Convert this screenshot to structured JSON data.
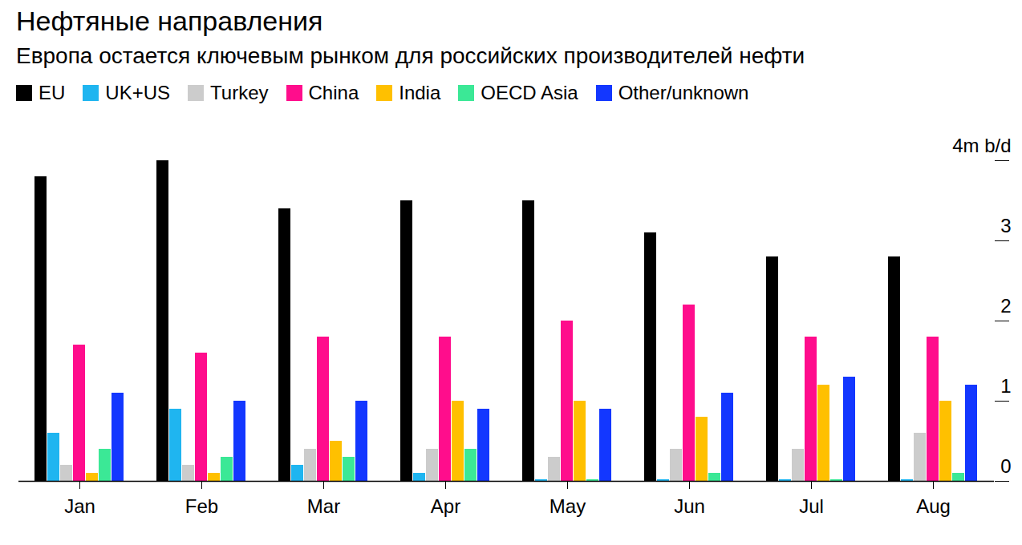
{
  "chart_data": {
    "type": "bar",
    "title": "Нефтяные направления",
    "subtitle": "Европа остается ключевым рынком для российских производителей нефти",
    "categories": [
      "Jan",
      "Feb",
      "Mar",
      "Apr",
      "May",
      "Jun",
      "Jul",
      "Aug"
    ],
    "series": [
      {
        "name": "EU",
        "color": "#000000",
        "values": [
          3.8,
          4.0,
          3.4,
          3.5,
          3.5,
          3.1,
          2.8,
          2.8
        ]
      },
      {
        "name": "UK+US",
        "color": "#1fb5f0",
        "values": [
          0.6,
          0.9,
          0.2,
          0.1,
          0.02,
          0.02,
          0.02,
          0.02
        ]
      },
      {
        "name": "Turkey",
        "color": "#cccccc",
        "values": [
          0.2,
          0.2,
          0.4,
          0.4,
          0.3,
          0.4,
          0.4,
          0.6
        ]
      },
      {
        "name": "China",
        "color": "#ff0d8c",
        "values": [
          1.7,
          1.6,
          1.8,
          1.8,
          2.0,
          2.2,
          1.8,
          1.8
        ]
      },
      {
        "name": "India",
        "color": "#ffc000",
        "values": [
          0.1,
          0.1,
          0.5,
          1.0,
          1.0,
          0.8,
          1.2,
          1.0
        ]
      },
      {
        "name": "OECD Asia",
        "color": "#3be896",
        "values": [
          0.4,
          0.3,
          0.3,
          0.4,
          0.02,
          0.1,
          0.02,
          0.1
        ]
      },
      {
        "name": "Other/unknown",
        "color": "#1337ff",
        "values": [
          1.1,
          1.0,
          1.0,
          0.9,
          0.9,
          1.1,
          1.3,
          1.2
        ]
      }
    ],
    "ylim": [
      0,
      4
    ],
    "yticks": [
      0,
      1,
      2,
      3,
      {
        "value": 4,
        "label": "4m b/d"
      }
    ],
    "grid": false,
    "legend": "top"
  }
}
